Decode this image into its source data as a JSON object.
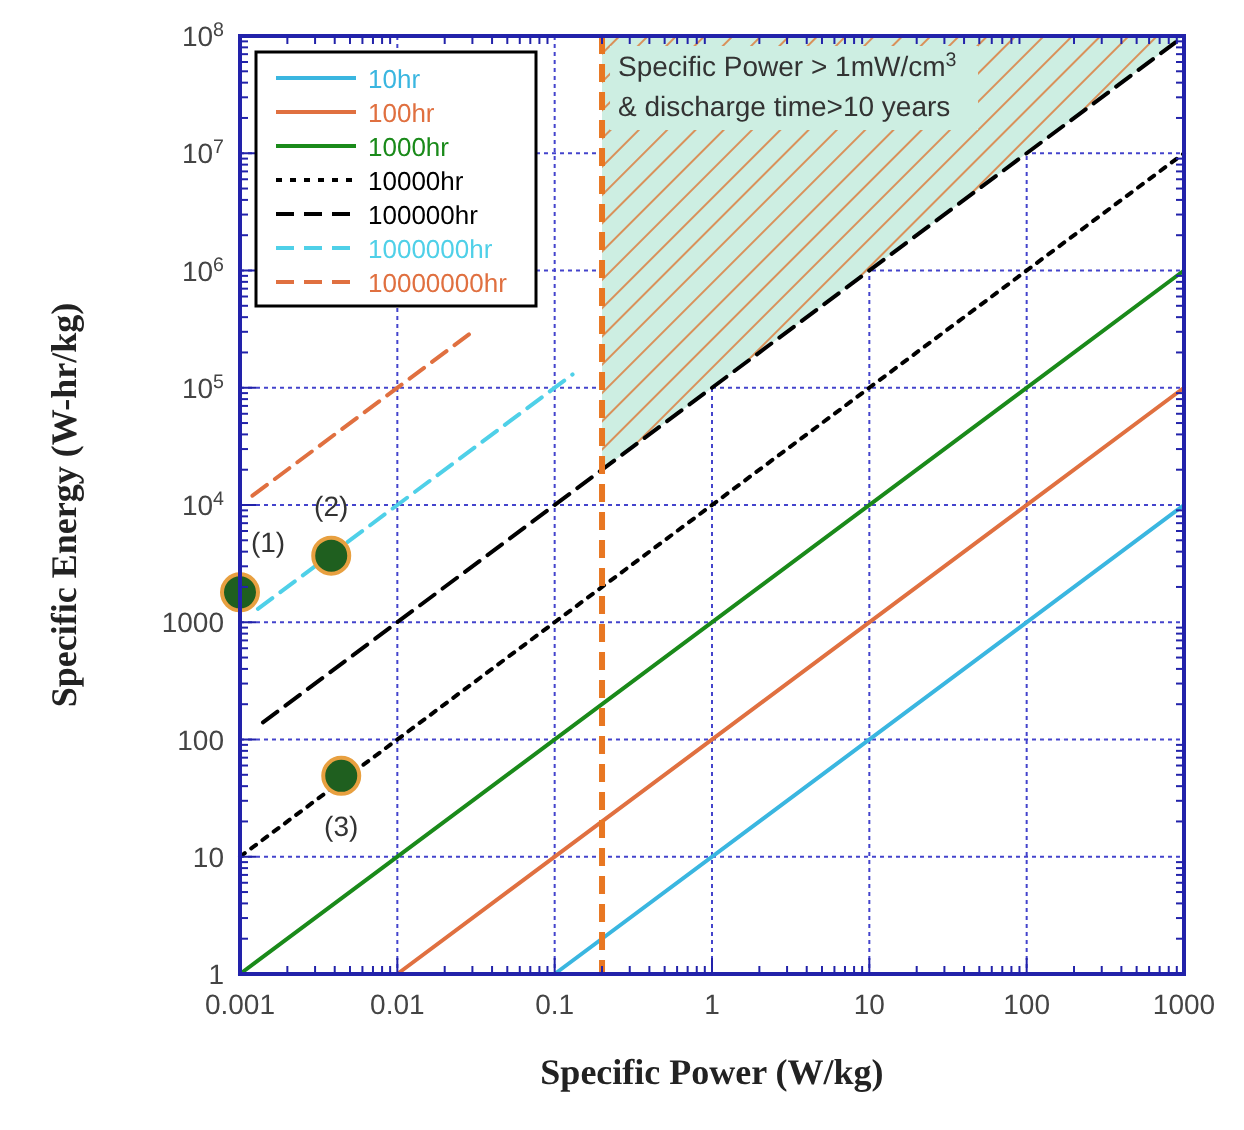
{
  "chart_data": {
    "type": "line",
    "xlabel": "Specific Power (W/kg)",
    "ylabel": "Specific Energy (W-hr/kg)",
    "log": "xy",
    "grid": true,
    "legend": "top left",
    "xlim": [
      0.001,
      1000
    ],
    "xticks": [
      0.001,
      0.01,
      0.1,
      1,
      10,
      100,
      1000
    ],
    "ylim": [
      1,
      100000000
    ],
    "yticks": [
      1,
      10,
      100,
      1000,
      {
        "value": 10000,
        "label": "10$^{4}$"
      },
      {
        "value": 100000,
        "label": "10$^{5}$"
      },
      {
        "value": 1000000,
        "label": "10$^{6}$"
      },
      {
        "value": 10000000,
        "label": "10$^{7}$"
      },
      {
        "value": 100000000,
        "label": "10$^{8}$"
      }
    ],
    "series": [
      {
        "name": "10hr",
        "color": "#3ab6e0",
        "line_style": "solid",
        "x": [
          0.1,
          1000
        ],
        "values": [
          1,
          10000
        ]
      },
      {
        "name": "100hr",
        "color": "#e07040",
        "line_style": "solid",
        "x": [
          0.01,
          1000
        ],
        "values": [
          1,
          100000
        ]
      },
      {
        "name": "1000hr",
        "color": "#1a8a1a",
        "line_style": "solid",
        "x": [
          0.001,
          1000
        ],
        "values": [
          1,
          1000000
        ]
      },
      {
        "name": "10000hr",
        "color": "#000000",
        "line_style": "dotted",
        "x": [
          0.001,
          1000
        ],
        "values": [
          10,
          10000000
        ]
      },
      {
        "name": "100000hr",
        "color": "#000000",
        "line_style": "dashed",
        "x": [
          0.0014,
          1000
        ],
        "values": [
          140,
          100000000
        ]
      },
      {
        "name": "1000000hr",
        "color": "#4fd0e8",
        "line_style": "dashed",
        "x": [
          0.0013,
          0.13
        ],
        "values": [
          1300,
          130000
        ]
      },
      {
        "name": "10000000hr",
        "color": "#e07040",
        "line_style": "dashed",
        "x": [
          0.0012,
          0.03
        ],
        "values": [
          12000,
          300000
        ]
      },
      {
        "type": "scatter",
        "color": "#1f5f1f",
        "marker": "circle",
        "x": [
          0.001,
          0.0038,
          0.0044
        ],
        "values": [
          1800,
          3700,
          49
        ]
      }
    ],
    "ref_lines": [
      {
        "axis": "x",
        "value": 0.2,
        "color": "#e87722",
        "line_style": "dashed"
      }
    ],
    "bands": [
      {
        "axis": "x",
        "from": 0.2,
        "to": 1000,
        "label": "Specific Power > 1mW/cm$^{3}$\n& discharge time>10 years"
      }
    ],
    "annotations": [
      {
        "text": "(1)",
        "x": 0.001,
        "y": 1800
      },
      {
        "text": "(2)",
        "x": 0.0038,
        "y": 3700
      },
      {
        "text": "(3)",
        "x": 0.0044,
        "y": 49
      }
    ]
  }
}
